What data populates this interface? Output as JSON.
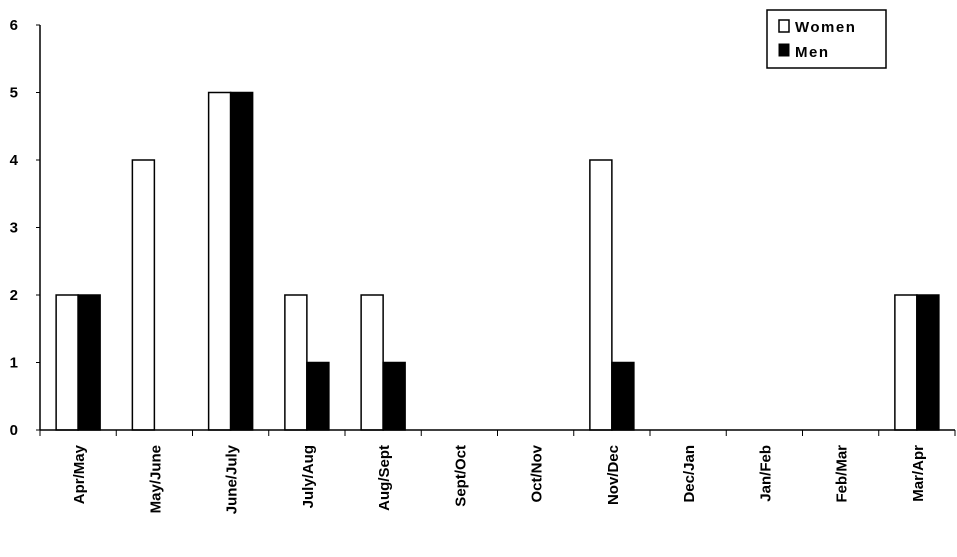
{
  "chart_data": {
    "type": "bar",
    "title": "",
    "xlabel": "",
    "ylabel": "",
    "categories": [
      "Apr/May",
      "May/June",
      "June/July",
      "July/Aug",
      "Aug/Sept",
      "Sept/Oct",
      "Oct/Nov",
      "Nov/Dec",
      "Dec/Jan",
      "Jan/Feb",
      "Feb/Mar",
      "Mar/Apr"
    ],
    "series": [
      {
        "name": "Women",
        "color": "#ffffff",
        "values": [
          2,
          4,
          5,
          2,
          2,
          0,
          0,
          4,
          0,
          0,
          0,
          2
        ]
      },
      {
        "name": "Men",
        "color": "#000000",
        "values": [
          2,
          0,
          5,
          1,
          1,
          0,
          0,
          1,
          0,
          0,
          0,
          2
        ]
      }
    ],
    "ylim": [
      0,
      6
    ],
    "yticks": [
      "0",
      "1",
      "2",
      "3",
      "4",
      "5",
      "6"
    ],
    "grid": false,
    "legend": "top-right"
  }
}
